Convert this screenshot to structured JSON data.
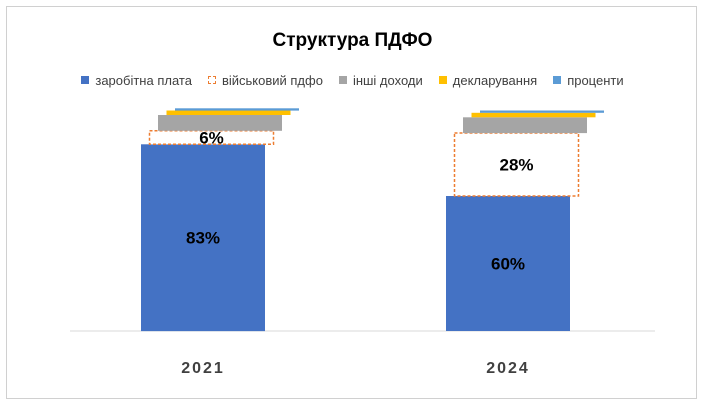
{
  "chart_data": {
    "type": "bar",
    "stacked": true,
    "title": "Структура ПДФО",
    "categories": [
      "2021",
      "2024"
    ],
    "series": [
      {
        "name": "заробітна плата",
        "color": "#4472C4",
        "style": "solid",
        "values": [
          83,
          60
        ],
        "labels": [
          "83%",
          "60%"
        ]
      },
      {
        "name": "військовий пдфо",
        "color": "#ED7D31",
        "style": "outline",
        "values": [
          6,
          28
        ],
        "labels": [
          "6%",
          "28%"
        ]
      },
      {
        "name": "інші доходи",
        "color": "#A5A5A5",
        "style": "solid",
        "values": [
          7,
          7
        ],
        "labels": [
          "",
          ""
        ]
      },
      {
        "name": "декларування",
        "color": "#FFC000",
        "style": "solid",
        "values": [
          2,
          2
        ],
        "labels": [
          "",
          ""
        ]
      },
      {
        "name": "проценти",
        "color": "#5B9BD5",
        "style": "solid",
        "values": [
          1,
          1
        ],
        "labels": [
          "",
          ""
        ]
      }
    ],
    "ylim": [
      0,
      100
    ],
    "legend_position": "top",
    "grid": false
  }
}
